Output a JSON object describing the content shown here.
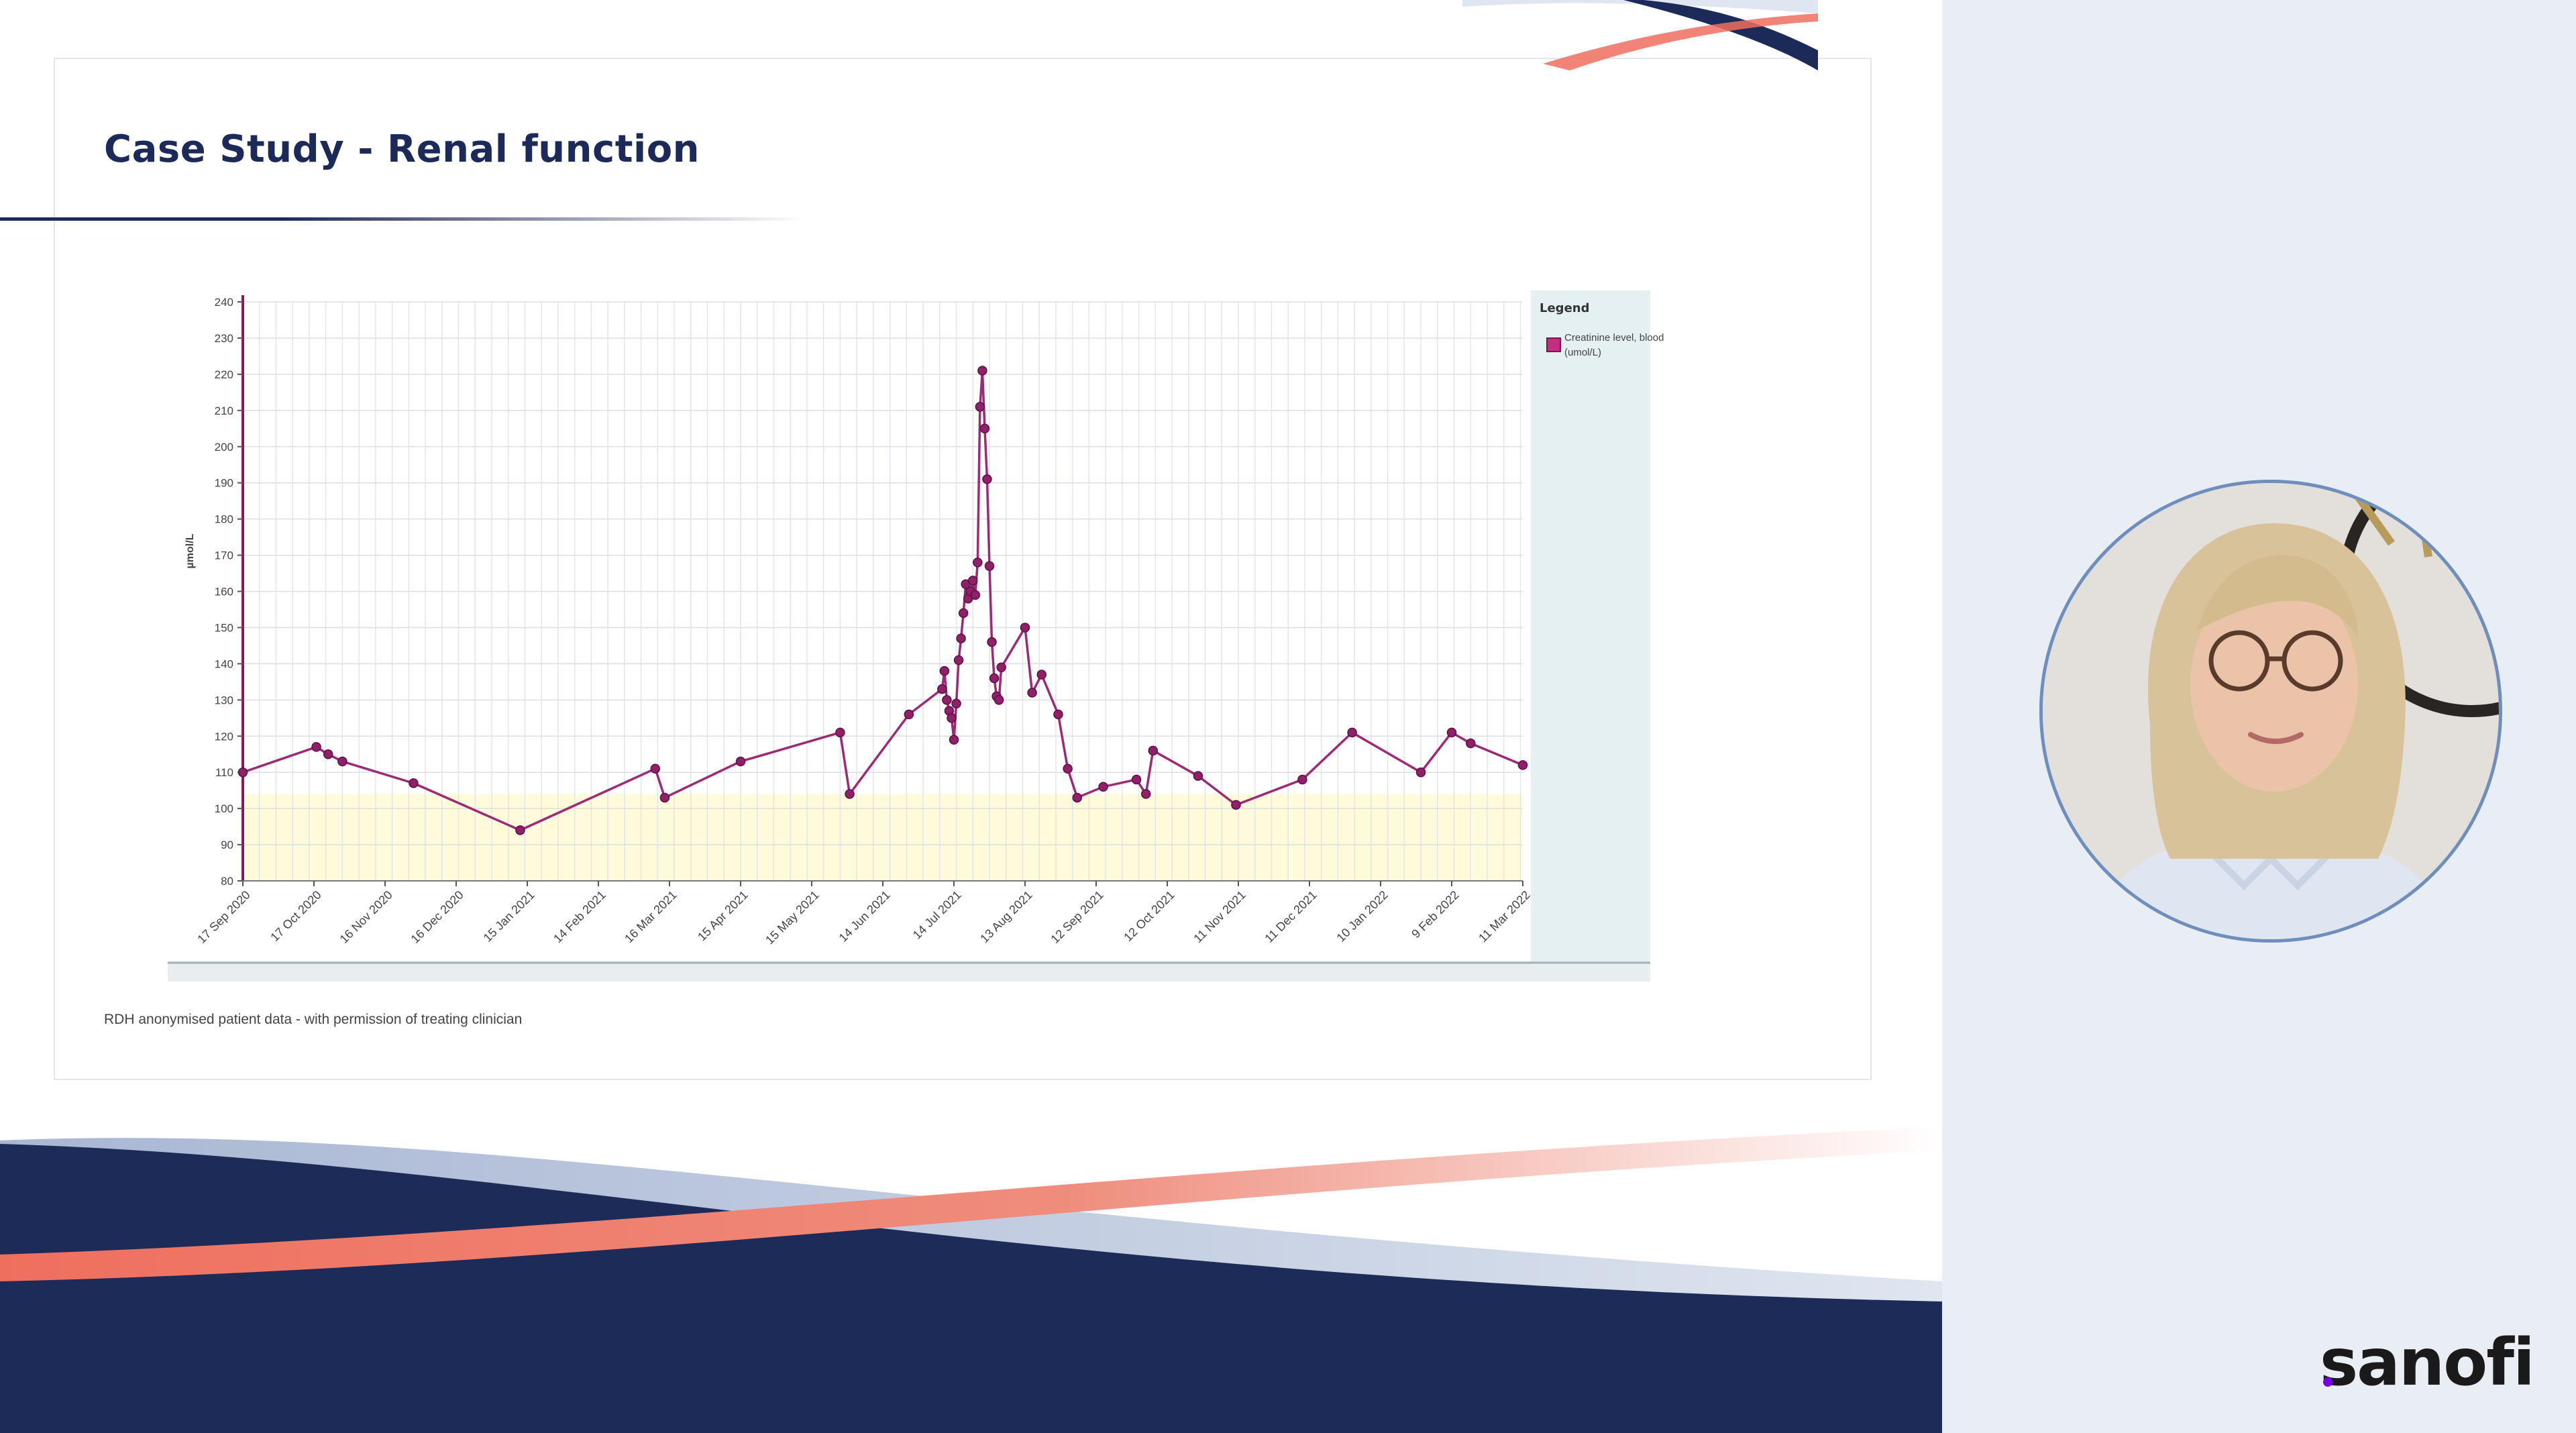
{
  "slide": {
    "title": "Case Study - Renal function",
    "footnote": "RDH anonymised patient data - with permission of treating clinician"
  },
  "brand": {
    "logo_text": "sanofi"
  },
  "colors": {
    "navy": "#1c2a5a",
    "coral": "#ef6f5e",
    "series": "#9c2a74",
    "normal_band": "#fdfbd9",
    "legend_bg": "#e5f0f2"
  },
  "chart_data": {
    "type": "line",
    "title": "",
    "xlabel": "",
    "ylabel": "µmol/L",
    "ylim": [
      80,
      240
    ],
    "yticks": [
      80,
      90,
      100,
      110,
      120,
      130,
      140,
      150,
      160,
      170,
      180,
      190,
      200,
      210,
      220,
      230,
      240
    ],
    "xlim": [
      "2020-09-17",
      "2022-03-11"
    ],
    "xticks": [
      "17 Sep 2020",
      "17 Oct 2020",
      "16 Nov 2020",
      "16 Dec 2020",
      "15 Jan 2021",
      "14 Feb 2021",
      "16 Mar 2021",
      "15 Apr 2021",
      "15 May 2021",
      "14 Jun 2021",
      "14 Jul 2021",
      "13 Aug 2021",
      "12 Sep 2021",
      "12 Oct 2021",
      "11 Nov 2021",
      "11 Dec 2021",
      "10 Jan 2022",
      "9 Feb 2022",
      "11 Mar 2022"
    ],
    "grid": true,
    "legend": {
      "title": "Legend",
      "position": "right"
    },
    "reference_band": {
      "from": 80,
      "to": 104
    },
    "series": [
      {
        "name": "Creatinine level, blood (umol/L)",
        "color": "#9c2a74",
        "x": [
          "2020-09-17",
          "2020-10-18",
          "2020-10-23",
          "2020-10-29",
          "2020-11-28",
          "2021-01-12",
          "2021-03-10",
          "2021-03-14",
          "2021-04-15",
          "2021-05-27",
          "2021-05-31",
          "2021-06-25",
          "2021-07-09",
          "2021-07-10",
          "2021-07-11",
          "2021-07-12",
          "2021-07-13",
          "2021-07-14",
          "2021-07-15",
          "2021-07-16",
          "2021-07-17",
          "2021-07-18",
          "2021-07-19",
          "2021-07-20",
          "2021-07-21",
          "2021-07-22",
          "2021-07-23",
          "2021-07-24",
          "2021-07-25",
          "2021-07-26",
          "2021-07-27",
          "2021-07-28",
          "2021-07-29",
          "2021-07-30",
          "2021-07-31",
          "2021-08-01",
          "2021-08-02",
          "2021-08-03",
          "2021-08-13",
          "2021-08-16",
          "2021-08-20",
          "2021-08-27",
          "2021-08-31",
          "2021-09-04",
          "2021-09-15",
          "2021-09-29",
          "2021-10-03",
          "2021-10-06",
          "2021-10-25",
          "2021-11-10",
          "2021-12-08",
          "2021-12-29",
          "2022-01-27",
          "2022-02-09",
          "2022-02-17",
          "2022-03-11"
        ],
        "values": [
          110,
          117,
          115,
          113,
          107,
          94,
          111,
          103,
          113,
          121,
          104,
          126,
          133,
          138,
          130,
          127,
          125,
          119,
          129,
          141,
          147,
          154,
          162,
          158,
          160,
          163,
          159,
          168,
          211,
          221,
          205,
          191,
          167,
          146,
          136,
          131,
          130,
          139,
          150,
          132,
          137,
          126,
          111,
          103,
          106,
          108,
          104,
          116,
          109,
          101,
          108,
          121,
          110,
          121,
          118,
          112
        ]
      }
    ]
  }
}
